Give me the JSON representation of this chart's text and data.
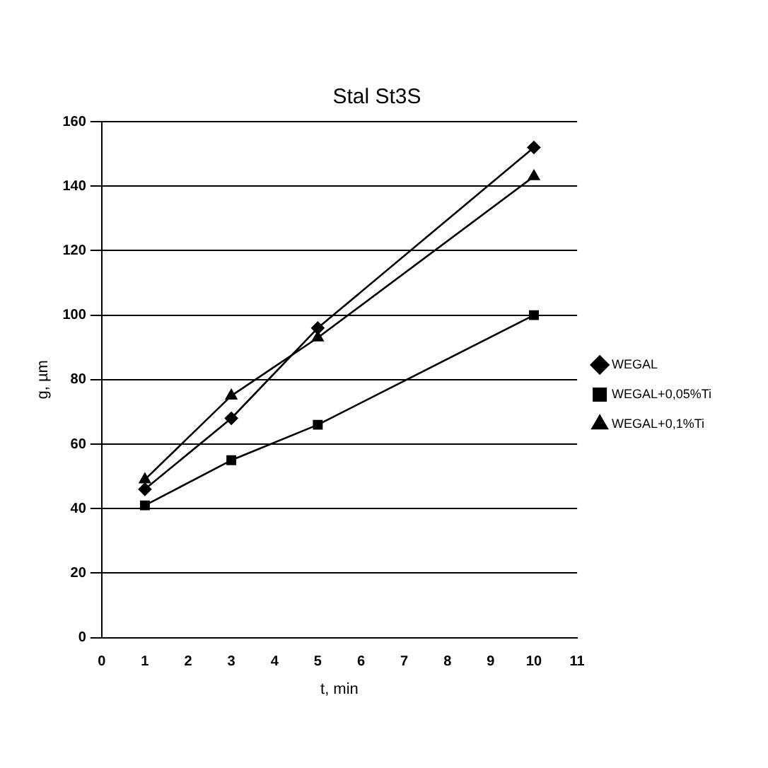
{
  "chart_data": {
    "type": "line",
    "title": "Stal St3S",
    "xlabel": "t, min",
    "ylabel": "g, µm",
    "x": [
      1,
      3,
      5,
      10
    ],
    "series": [
      {
        "name": "WEGAL",
        "color": "#000000",
        "marker": "diamond",
        "values": [
          46,
          68,
          96,
          152
        ]
      },
      {
        "name": "WEGAL+0,05%Ti",
        "color": "#000000",
        "marker": "square",
        "values": [
          41,
          55,
          66,
          100
        ]
      },
      {
        "name": "WEGAL+0,1%Ti",
        "color": "#000000",
        "marker": "triangle",
        "values": [
          49,
          75,
          93,
          143
        ]
      }
    ],
    "xlim": [
      0,
      11
    ],
    "xticks": [
      0,
      1,
      2,
      3,
      4,
      5,
      6,
      7,
      8,
      9,
      10,
      11
    ],
    "ylim": [
      0,
      160
    ],
    "yticks": [
      0,
      20,
      40,
      60,
      80,
      100,
      120,
      140,
      160
    ],
    "grid": "y",
    "legend": "right",
    "line_style": "solid"
  }
}
